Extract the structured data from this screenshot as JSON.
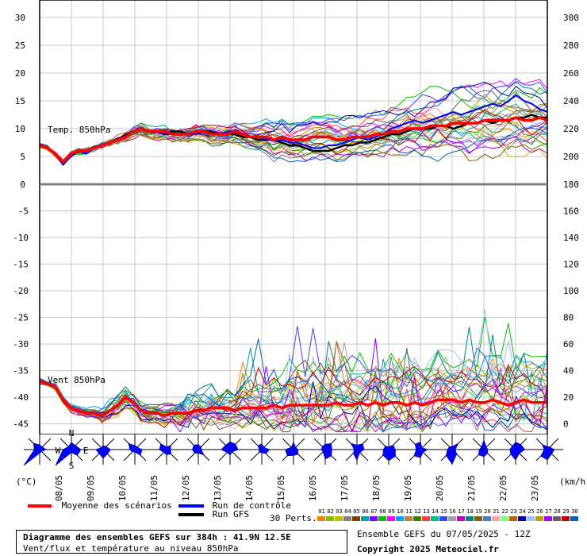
{
  "chart_data": {
    "type": "line",
    "panels": [
      {
        "name": "temp",
        "label": "Temp. 850hPa",
        "y_left_ticks": [
          30,
          25,
          20,
          15,
          10,
          5,
          0
        ],
        "y_right_ticks": [
          300,
          280,
          260,
          240,
          220,
          200,
          180
        ],
        "ylim": [
          0,
          30
        ],
        "mean": [
          7,
          6.5,
          5.5,
          4,
          5.5,
          6,
          6,
          6.5,
          7,
          7.5,
          8,
          8.5,
          9.5,
          10,
          9.5,
          9.5,
          9.5,
          9,
          9,
          9,
          9.5,
          9.5,
          9,
          9,
          9,
          9.5,
          9,
          8.5,
          8.5,
          8.5,
          8,
          8.5,
          8,
          8,
          8,
          8.5,
          8.5,
          8.5,
          8,
          8,
          8.5,
          8.5,
          8.5,
          9,
          9,
          9.5,
          9.5,
          10,
          10,
          10,
          10.5,
          10.5,
          10.5,
          11,
          11,
          11,
          11,
          11.5,
          11.5,
          11.5,
          11.5,
          12,
          11.5,
          11.5,
          12,
          11.5
        ],
        "control": [
          7,
          6.5,
          5.5,
          3.5,
          5,
          6,
          5.5,
          6.5,
          7,
          7.5,
          8,
          8.5,
          9.5,
          10,
          9.5,
          9.5,
          9,
          9,
          9,
          9,
          9,
          9.5,
          9,
          9,
          9.5,
          9.5,
          9,
          8.5,
          8.5,
          8,
          8,
          8,
          7.5,
          7.5,
          7,
          6.5,
          6.5,
          7,
          7,
          7.5,
          8,
          8.5,
          8,
          8.5,
          9,
          10,
          10.5,
          11,
          11.5,
          11,
          11.5,
          12,
          12.5,
          13,
          12.5,
          13,
          13.5,
          14,
          14.5,
          14,
          15,
          16,
          15,
          14.5,
          13.5,
          13
        ],
        "gfs": [
          7,
          6.5,
          5.5,
          4,
          5.5,
          6,
          6,
          6.5,
          7,
          7.5,
          8,
          9,
          9.5,
          10,
          9.5,
          9.5,
          9,
          9.5,
          9.5,
          9,
          9.5,
          9.5,
          9.5,
          9,
          9,
          9,
          8.5,
          8.5,
          8,
          8,
          8,
          7.5,
          7,
          7,
          6.5,
          6,
          6,
          6,
          6.5,
          7,
          7,
          7.5,
          7.5,
          8,
          8.5,
          9,
          9,
          9.5,
          10,
          10,
          10,
          10.5,
          10.5,
          10,
          10.5,
          11,
          11,
          11.5,
          11,
          11.5,
          11.5,
          12,
          12,
          12.5,
          12,
          12
        ]
      },
      {
        "name": "wind",
        "label": "Vent 850hPa",
        "y_left_ticks": [
          -5,
          -10,
          -15,
          -20,
          -25,
          -30,
          -35,
          -40,
          -45
        ],
        "y_right_ticks": [
          160,
          140,
          120,
          100,
          80,
          60,
          40,
          20,
          0
        ],
        "ylim": [
          -47,
          0
        ],
        "mean": [
          -37,
          -37.5,
          -38,
          -40.5,
          -42,
          -42.5,
          -43,
          -43,
          -43.5,
          -42.5,
          -41.5,
          -40,
          -41,
          -42.5,
          -43,
          -43,
          -43.5,
          -43,
          -43,
          -43,
          -42.5,
          -42.5,
          -42,
          -42,
          -42,
          -42.5,
          -42,
          -42,
          -42,
          -42,
          -41.5,
          -42,
          -41.5,
          -41.5,
          -41.5,
          -41.5,
          -41.5,
          -41.5,
          -41,
          -41.5,
          -41.5,
          -41,
          -41.5,
          -41,
          -41.5,
          -41,
          -41,
          -41.5,
          -41,
          -41.5,
          -41,
          -40.5,
          -40.5,
          -40.5,
          -41,
          -40.5,
          -41,
          -41,
          -40.5,
          -41,
          -41.5,
          -41,
          -40.5,
          -41,
          -41,
          -41
        ]
      }
    ],
    "x_ticks": [
      "08/05",
      "09/05",
      "10/05",
      "11/05",
      "12/05",
      "13/05",
      "14/05",
      "15/05",
      "16/05",
      "17/05",
      "18/05",
      "19/05",
      "20/05",
      "21/05",
      "22/05",
      "23/05"
    ],
    "units_left": "(°C)",
    "units_right": "(km/h)",
    "wind_rose_dir": [
      "N",
      "W",
      "E",
      "S"
    ]
  },
  "legend": {
    "mean_label": "Moyenne des scénarios",
    "control_label": "Run de contrôle",
    "gfs_label": "Run GFS",
    "perts_label": "30 Perts.",
    "pert_numbers": [
      "01",
      "02",
      "03",
      "04",
      "05",
      "06",
      "07",
      "08",
      "09",
      "10",
      "11",
      "12",
      "13",
      "14",
      "15",
      "16",
      "17",
      "18",
      "19",
      "20",
      "21",
      "22",
      "23",
      "24",
      "25",
      "26",
      "27",
      "28",
      "29",
      "30"
    ],
    "pert_colors": [
      "#ff8000",
      "#80c000",
      "#c0c000",
      "#808080",
      "#804000",
      "#00a0a0",
      "#8000ff",
      "#00c000",
      "#ff00ff",
      "#00a0ff",
      "#c08040",
      "#408000",
      "#ff4040",
      "#00c080",
      "#4040ff",
      "#a0a0a0",
      "#c000c0",
      "#008080",
      "#806000",
      "#4080c0",
      "#ffa0a0",
      "#80ff80",
      "#c06000",
      "#0000a0",
      "#a0c0ff",
      "#c0a000",
      "#a000ff",
      "#606060",
      "#c00000",
      "#0060c0"
    ],
    "mean_color": "#ff0000",
    "control_color": "#0000ff",
    "gfs_color": "#000000"
  },
  "footer": {
    "title": "Diagramme des ensembles GEFS sur 384h : 41.9N 12.5E",
    "subtitle": "Vent/flux et température au niveau 850hPa",
    "run": "Ensemble GEFS du 07/05/2025 - 12Z",
    "copyright": "Copyright 2025 Meteociel.fr"
  }
}
